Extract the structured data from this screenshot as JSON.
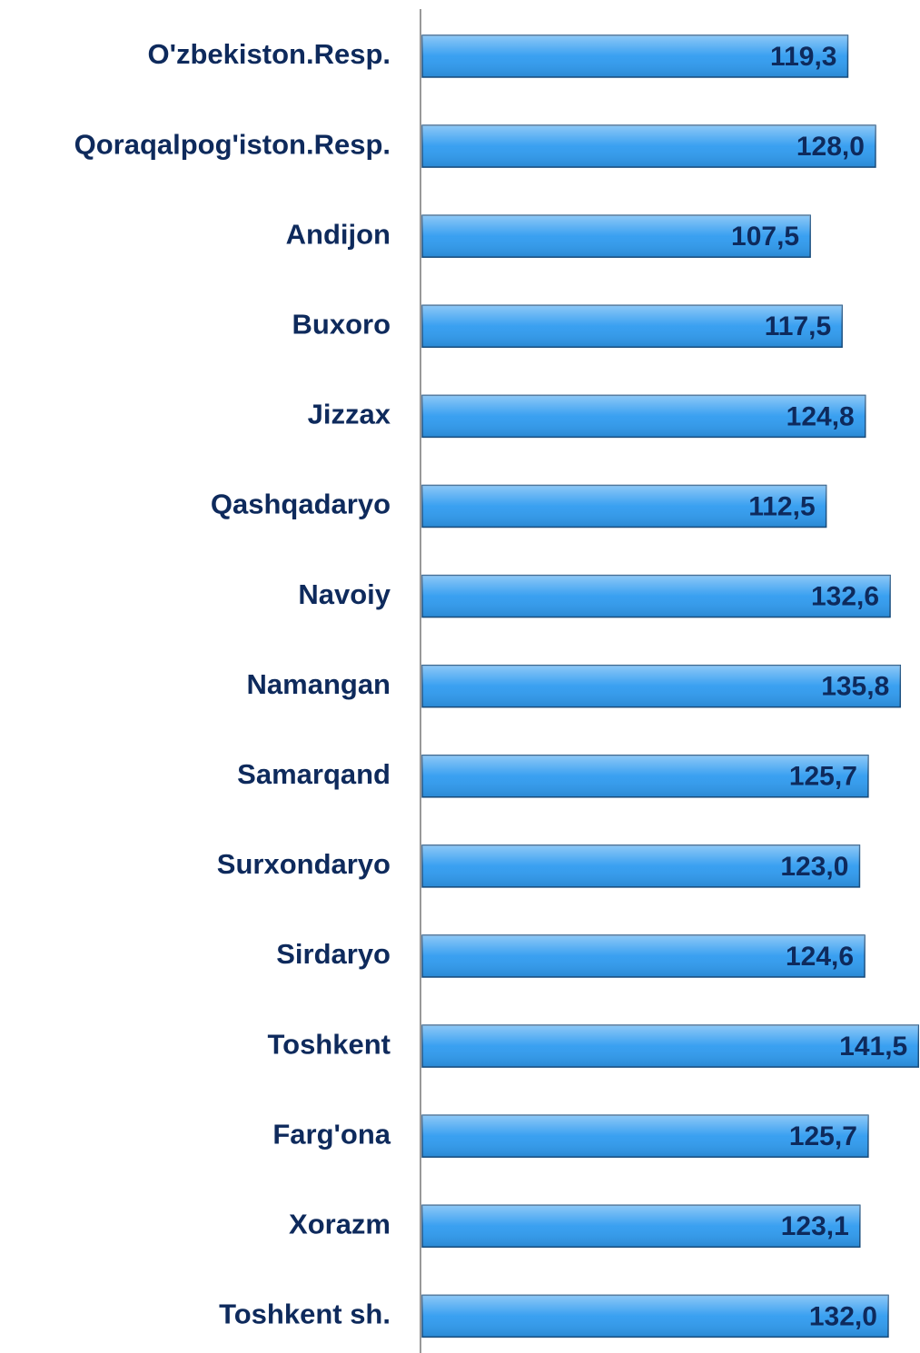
{
  "chart_data": {
    "type": "bar",
    "orientation": "horizontal",
    "categories": [
      "O'zbekiston.Resp.",
      "Qoraqalpog'iston.Resp.",
      "Andijon",
      "Buxoro",
      "Jizzax",
      "Qashqadaryo",
      "Navoiy",
      "Namangan",
      "Samarqand",
      "Surxondaryo",
      "Sirdaryo",
      "Toshkent",
      "Farg'ona",
      "Xorazm",
      "Toshkent sh."
    ],
    "values": [
      119.3,
      128.0,
      107.5,
      117.5,
      124.8,
      112.5,
      132.6,
      135.8,
      125.7,
      123.0,
      124.6,
      141.5,
      125.7,
      123.1,
      132.0
    ],
    "value_labels": [
      "119,3",
      "128,0",
      "107,5",
      "117,5",
      "124,8",
      "112,5",
      "132,6",
      "135,8",
      "125,7",
      "123,0",
      "124,6",
      "141,5",
      "125,7",
      "123,1",
      "132,0"
    ],
    "color": "#2f9bf0",
    "xlim": [
      -15,
      142
    ]
  }
}
